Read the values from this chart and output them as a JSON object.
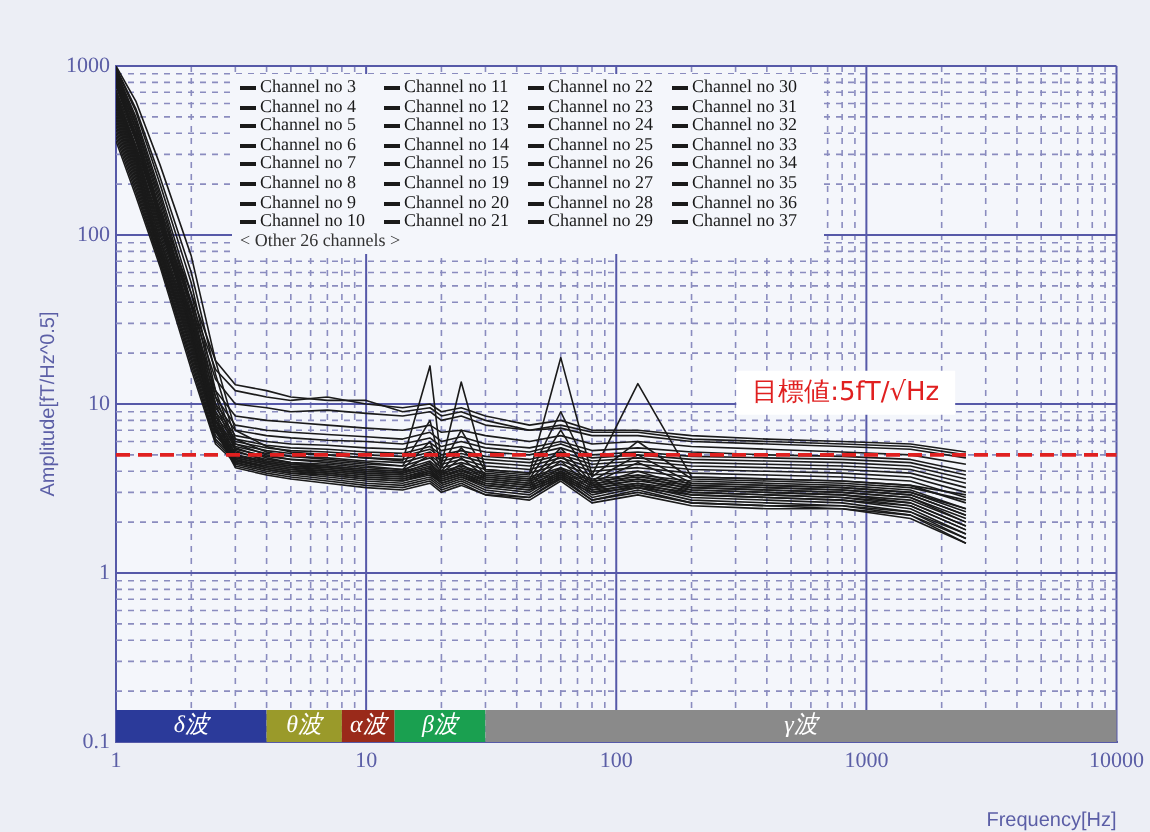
{
  "chart_data": {
    "type": "line",
    "xlabel": "Frequency[Hz]",
    "ylabel": "Amplitude[fT/Hz^0.5]",
    "log": "xy",
    "grid": true,
    "legend": "top",
    "marker": "none",
    "line_style": "solid",
    "xlim": [
      1,
      10000
    ],
    "ylim": [
      0.1,
      1000
    ],
    "xticks": [
      1,
      {
        "value": 2,
        "label": null
      },
      {
        "value": 3,
        "label": null
      },
      {
        "value": 4,
        "label": null
      },
      {
        "value": 5,
        "label": null
      },
      {
        "value": 6,
        "label": null
      },
      {
        "value": 7,
        "label": null
      },
      {
        "value": 8,
        "label": null
      },
      {
        "value": 9,
        "label": null
      },
      10,
      {
        "value": 20,
        "label": null
      },
      {
        "value": 30,
        "label": null
      },
      {
        "value": 40,
        "label": null
      },
      {
        "value": 50,
        "label": null
      },
      {
        "value": 60,
        "label": null
      },
      {
        "value": 70,
        "label": null
      },
      {
        "value": 80,
        "label": null
      },
      {
        "value": 90,
        "label": null
      },
      100,
      {
        "value": 200,
        "label": null
      },
      {
        "value": 300,
        "label": null
      },
      {
        "value": 400,
        "label": null
      },
      {
        "value": 500,
        "label": null
      },
      {
        "value": 600,
        "label": null
      },
      {
        "value": 700,
        "label": null
      },
      {
        "value": 800,
        "label": null
      },
      {
        "value": 900,
        "label": null
      },
      1000,
      {
        "value": 2000,
        "label": null
      },
      {
        "value": 3000,
        "label": null
      },
      {
        "value": 4000,
        "label": null
      },
      {
        "value": 5000,
        "label": null
      },
      {
        "value": 6000,
        "label": null
      },
      {
        "value": 7000,
        "label": null
      },
      {
        "value": 8000,
        "label": null
      },
      {
        "value": 9000,
        "label": null
      },
      10000
    ],
    "yticks": [
      0.1,
      {
        "value": 0.2,
        "label": null
      },
      {
        "value": 0.3,
        "label": null
      },
      {
        "value": 0.4,
        "label": null
      },
      {
        "value": 0.5,
        "label": null
      },
      {
        "value": 0.6,
        "label": null
      },
      {
        "value": 0.7,
        "label": null
      },
      {
        "value": 0.8,
        "label": null
      },
      {
        "value": 0.9,
        "label": null
      },
      1,
      {
        "value": 2,
        "label": null
      },
      {
        "value": 3,
        "label": null
      },
      {
        "value": 4,
        "label": null
      },
      {
        "value": 5,
        "label": null
      },
      {
        "value": 6,
        "label": null
      },
      {
        "value": 7,
        "label": null
      },
      {
        "value": 8,
        "label": null
      },
      {
        "value": 9,
        "label": null
      },
      10,
      {
        "value": 20,
        "label": null
      },
      {
        "value": 30,
        "label": null
      },
      {
        "value": 40,
        "label": null
      },
      {
        "value": 50,
        "label": null
      },
      {
        "value": 60,
        "label": null
      },
      {
        "value": 70,
        "label": null
      },
      {
        "value": 80,
        "label": null
      },
      {
        "value": 90,
        "label": null
      },
      100,
      {
        "value": 200,
        "label": null
      },
      {
        "value": 300,
        "label": null
      },
      {
        "value": 400,
        "label": null
      },
      {
        "value": 500,
        "label": null
      },
      {
        "value": 600,
        "label": null
      },
      {
        "value": 700,
        "label": null
      },
      {
        "value": 800,
        "label": null
      },
      {
        "value": 900,
        "label": null
      },
      1000
    ],
    "x": [
      1,
      1.2,
      1.5,
      2,
      2.5,
      3,
      4,
      5,
      7,
      10,
      14,
      18,
      20,
      24,
      30,
      45,
      60,
      80,
      122,
      200,
      400,
      800,
      1500,
      2500
    ],
    "ref_lines": [
      {
        "axis": "y",
        "value": 5,
        "label": "目標値:5fT/√Hz",
        "color": "#e02020",
        "line_style": "dashed"
      }
    ],
    "bands": [
      {
        "axis": "x",
        "from": 1,
        "to": 4,
        "label": "δ波",
        "color": "#2b3a9a"
      },
      {
        "axis": "x",
        "from": 4,
        "to": 8,
        "label": "θ波",
        "color": "#9a9a2a"
      },
      {
        "axis": "x",
        "from": 8,
        "to": 13,
        "label": "α波",
        "color": "#9a2a1a"
      },
      {
        "axis": "x",
        "from": 13,
        "to": 30,
        "label": "β波",
        "color": "#1aa050"
      },
      {
        "axis": "x",
        "from": 30,
        "to": 10000,
        "label": "γ波",
        "color": "#8a8a8a"
      }
    ],
    "annotations": [
      "< Other 26 channels >"
    ],
    "series": [
      {
        "name": "Channel no 3",
        "color": "#1a1a1a",
        "values": [
          1000,
          620,
          260,
          75,
          18,
          7,
          5.6,
          5.2,
          5,
          4.8,
          4.6,
          16.8,
          4.4,
          13.5,
          4.1,
          3.9,
          18.8,
          3.8,
          13.2,
          3.7,
          3.6,
          3.5,
          3.3,
          2.9
        ]
      },
      {
        "name": "Channel no 4",
        "color": "#1a1a1a",
        "values": [
          980,
          560,
          220,
          60,
          15,
          6.2,
          5.2,
          4.9,
          4.7,
          4.5,
          4.3,
          8,
          4.2,
          7,
          4,
          3.8,
          9,
          3.7,
          6,
          3.6,
          3.5,
          3.4,
          3.2,
          2.7
        ]
      },
      {
        "name": "Channel no 5",
        "color": "#1a1a1a",
        "values": [
          960,
          540,
          200,
          52,
          12,
          5.8,
          5,
          4.7,
          4.5,
          4.3,
          4.1,
          6,
          4,
          5.5,
          3.8,
          3.6,
          7,
          3.5,
          5,
          3.4,
          3.3,
          3.2,
          3,
          2.4
        ]
      },
      {
        "name": "Channel no 6",
        "color": "#1a1a1a",
        "values": [
          940,
          500,
          180,
          45,
          11,
          5.5,
          4.8,
          4.5,
          4.3,
          4.1,
          4,
          5,
          3.9,
          4.8,
          3.7,
          3.5,
          5.5,
          3.4,
          4.5,
          3.3,
          3.2,
          3.1,
          2.9,
          2.2
        ]
      },
      {
        "name": "Channel no 7",
        "color": "#1a1a1a",
        "values": [
          920,
          480,
          170,
          40,
          10,
          5.3,
          4.6,
          4.4,
          4.2,
          4,
          3.9,
          4.5,
          3.8,
          4.4,
          3.6,
          3.4,
          5,
          3.3,
          4,
          3.2,
          3.1,
          3,
          2.8,
          2
        ]
      },
      {
        "name": "Channel no 8",
        "color": "#1a1a1a",
        "values": [
          900,
          460,
          160,
          38,
          9,
          5,
          4.5,
          4.3,
          4.1,
          3.9,
          3.8,
          4.2,
          3.7,
          4.1,
          3.5,
          3.3,
          4.6,
          3.2,
          3.8,
          3.1,
          3,
          2.9,
          2.6,
          1.9
        ]
      },
      {
        "name": "Channel no 9",
        "color": "#1a1a1a",
        "values": [
          880,
          450,
          150,
          35,
          8.5,
          4.8,
          4.4,
          4.2,
          4,
          3.8,
          3.7,
          4,
          3.6,
          3.9,
          3.4,
          3.2,
          4.2,
          3.1,
          3.6,
          3,
          2.9,
          2.8,
          2.5,
          1.8
        ]
      },
      {
        "name": "Channel no 10",
        "color": "#1a1a1a",
        "values": [
          860,
          430,
          140,
          33,
          8,
          4.6,
          4.3,
          4.1,
          3.9,
          3.7,
          3.6,
          3.9,
          3.5,
          3.8,
          3.3,
          3.1,
          4,
          3,
          3.4,
          2.9,
          2.8,
          2.7,
          2.4,
          1.7
        ]
      },
      {
        "name": "Channel no 11",
        "color": "#1a1a1a",
        "values": [
          840,
          420,
          135,
          32,
          8,
          4.7,
          4.2,
          4,
          3.8,
          3.6,
          3.5,
          3.8,
          3.4,
          3.7,
          3.2,
          3,
          3.9,
          2.9,
          3.3,
          2.8,
          2.7,
          2.6,
          2.3,
          1.7
        ]
      },
      {
        "name": "Channel no 12",
        "color": "#1a1a1a",
        "values": [
          820,
          400,
          130,
          30,
          7.5,
          4.5,
          4.1,
          3.9,
          3.7,
          3.5,
          3.4,
          3.7,
          3.3,
          3.6,
          3.1,
          2.9,
          3.8,
          2.8,
          3.2,
          2.7,
          2.6,
          2.5,
          2.3,
          1.6
        ]
      },
      {
        "name": "Channel no 13",
        "color": "#1a1a1a",
        "values": [
          800,
          390,
          125,
          29,
          7.2,
          4.4,
          4,
          3.8,
          3.6,
          3.4,
          3.3,
          3.6,
          3.2,
          3.5,
          3,
          2.8,
          3.7,
          2.7,
          3.1,
          2.6,
          2.5,
          2.5,
          2.2,
          1.6
        ]
      },
      {
        "name": "Channel no 14",
        "color": "#1a1a1a",
        "values": [
          780,
          380,
          120,
          28,
          7,
          4.3,
          3.9,
          3.7,
          3.5,
          3.3,
          3.2,
          3.5,
          3.1,
          3.4,
          2.9,
          2.8,
          3.6,
          2.7,
          3,
          2.6,
          2.5,
          2.4,
          2.2,
          1.5
        ]
      },
      {
        "name": "Channel no 15",
        "color": "#1a1a1a",
        "values": [
          760,
          370,
          118,
          27,
          7,
          4.2,
          3.8,
          3.6,
          3.4,
          3.2,
          3.1,
          3.4,
          3,
          3.3,
          2.9,
          2.7,
          3.5,
          2.6,
          2.9,
          2.5,
          2.4,
          2.4,
          2.1,
          1.5
        ]
      },
      {
        "name": "Channel no 19",
        "color": "#1a1a1a",
        "values": [
          700,
          340,
          130,
          40,
          16,
          12,
          11,
          10.5,
          11,
          10,
          9.5,
          10,
          9,
          9.5,
          8.5,
          7.5,
          8,
          7,
          7,
          6.5,
          6.2,
          6,
          5.8,
          5.2
        ]
      },
      {
        "name": "Channel no 20",
        "color": "#1a1a1a",
        "values": [
          720,
          360,
          140,
          45,
          18,
          13,
          12,
          11,
          10.5,
          10.5,
          9,
          9.5,
          8.5,
          9,
          8,
          7,
          7.5,
          6.8,
          6.8,
          6.2,
          6,
          5.8,
          5.6,
          5
        ]
      },
      {
        "name": "Channel no 21",
        "color": "#1a1a1a",
        "values": [
          680,
          330,
          125,
          38,
          14,
          10,
          9.5,
          9,
          9.2,
          8.8,
          8.5,
          9,
          8,
          8.5,
          7.5,
          7,
          7.2,
          6.5,
          6.5,
          6,
          5.8,
          5.6,
          5.4,
          4.8
        ]
      },
      {
        "name": "Channel no 22",
        "color": "#1a1a1a",
        "values": [
          660,
          320,
          115,
          34,
          12,
          8.5,
          8,
          7.8,
          7.5,
          7.2,
          7,
          7.5,
          6.8,
          7,
          6.5,
          6,
          6.5,
          5.8,
          6,
          5.6,
          5.4,
          5.2,
          5,
          4.4
        ]
      },
      {
        "name": "Channel no 23",
        "color": "#1a1a1a",
        "values": [
          640,
          310,
          110,
          32,
          11,
          7.5,
          7,
          6.8,
          6.6,
          6.4,
          6.2,
          6.8,
          6,
          6.4,
          5.8,
          5.5,
          6,
          5.3,
          5.5,
          5.2,
          5,
          4.9,
          4.7,
          4
        ]
      },
      {
        "name": "Channel no 24",
        "color": "#1a1a1a",
        "values": [
          620,
          300,
          105,
          30,
          10,
          7,
          6.5,
          6.3,
          6.1,
          6,
          5.8,
          6.3,
          5.6,
          6,
          5.5,
          5.2,
          5.8,
          5,
          5.2,
          4.9,
          4.8,
          4.7,
          4.5,
          3.8
        ]
      },
      {
        "name": "Channel no 25",
        "color": "#1a1a1a",
        "values": [
          600,
          290,
          100,
          28,
          9.5,
          6.5,
          6,
          5.8,
          5.7,
          5.5,
          5.4,
          5.9,
          5.3,
          5.6,
          5.2,
          5,
          5.5,
          4.8,
          5,
          4.7,
          4.6,
          4.5,
          4.3,
          3.6
        ]
      },
      {
        "name": "Channel no 26",
        "color": "#1a1a1a",
        "values": [
          580,
          280,
          95,
          27,
          9,
          6.2,
          5.7,
          5.5,
          5.4,
          5.2,
          5.1,
          5.6,
          5,
          5.3,
          4.9,
          4.7,
          5.2,
          4.6,
          4.8,
          4.5,
          4.4,
          4.3,
          4.1,
          3.4
        ]
      },
      {
        "name": "Channel no 27",
        "color": "#1a1a1a",
        "values": [
          560,
          270,
          92,
          26,
          8.5,
          6,
          5.5,
          5.3,
          5.2,
          5,
          4.9,
          5.4,
          4.8,
          5.1,
          4.7,
          4.5,
          5,
          4.4,
          4.6,
          4.3,
          4.2,
          4.1,
          3.9,
          3.2
        ]
      },
      {
        "name": "Channel no 28",
        "color": "#1a1a1a",
        "values": [
          540,
          260,
          88,
          25,
          8,
          5.8,
          5.3,
          5.1,
          5,
          4.8,
          4.7,
          5.2,
          4.6,
          4.9,
          4.5,
          4.3,
          4.8,
          4.2,
          4.4,
          4.1,
          4,
          3.9,
          3.7,
          3
        ]
      },
      {
        "name": "Channel no 29",
        "color": "#1a1a1a",
        "values": [
          520,
          250,
          85,
          24,
          7.8,
          5.6,
          5.1,
          4.9,
          4.8,
          4.6,
          4.5,
          5,
          4.4,
          4.7,
          4.3,
          4.1,
          4.6,
          4,
          4.2,
          3.9,
          3.8,
          3.7,
          3.5,
          2.8
        ]
      },
      {
        "name": "Channel no 30",
        "color": "#1a1a1a",
        "values": [
          500,
          240,
          82,
          23,
          7.5,
          5.4,
          4.9,
          4.7,
          4.6,
          4.4,
          4.3,
          4.8,
          4.2,
          4.5,
          4.1,
          3.9,
          4.4,
          3.8,
          4,
          3.7,
          3.6,
          3.5,
          3.3,
          2.6
        ]
      },
      {
        "name": "Channel no 31",
        "color": "#1a1a1a",
        "values": [
          480,
          230,
          80,
          22,
          7.2,
          5.2,
          4.7,
          4.5,
          4.4,
          4.2,
          4.1,
          4.6,
          4,
          4.3,
          3.9,
          3.7,
          4.2,
          3.6,
          3.8,
          3.5,
          3.4,
          3.3,
          3.1,
          2.4
        ]
      },
      {
        "name": "Channel no 32",
        "color": "#1a1a1a",
        "values": [
          460,
          220,
          78,
          21,
          7,
          5,
          4.6,
          4.4,
          4.3,
          4.1,
          4,
          4.4,
          3.9,
          4.2,
          3.8,
          3.6,
          4.1,
          3.5,
          3.7,
          3.4,
          3.3,
          3.2,
          3,
          2.3
        ]
      },
      {
        "name": "Channel no 33",
        "color": "#1a1a1a",
        "values": [
          440,
          210,
          75,
          20,
          6.8,
          4.9,
          4.5,
          4.3,
          4.2,
          4,
          3.9,
          4.3,
          3.8,
          4.1,
          3.7,
          3.5,
          4,
          3.4,
          3.6,
          3.3,
          3.2,
          3.1,
          2.9,
          2.2
        ]
      },
      {
        "name": "Channel no 34",
        "color": "#1a1a1a",
        "values": [
          420,
          200,
          72,
          19,
          6.5,
          4.8,
          4.4,
          4.2,
          4.1,
          3.9,
          3.8,
          4.2,
          3.7,
          4,
          3.6,
          3.4,
          3.9,
          3.3,
          3.5,
          3.2,
          3.1,
          3,
          2.8,
          2.1
        ]
      },
      {
        "name": "Channel no 35",
        "color": "#1a1a1a",
        "values": [
          400,
          190,
          70,
          18,
          6.2,
          4.7,
          4.3,
          4.1,
          4,
          3.8,
          3.7,
          4.1,
          3.6,
          3.9,
          3.5,
          3.3,
          3.8,
          3.2,
          3.4,
          3.1,
          3,
          2.9,
          2.7,
          2
        ]
      },
      {
        "name": "Channel no 36",
        "color": "#1a1a1a",
        "values": [
          380,
          180,
          68,
          17,
          6,
          4.6,
          4.2,
          4,
          3.9,
          3.7,
          3.6,
          4,
          3.5,
          3.8,
          3.4,
          3.2,
          3.7,
          3.1,
          3.3,
          3,
          2.9,
          2.8,
          2.6,
          1.9
        ]
      },
      {
        "name": "Channel no 37",
        "color": "#1a1a1a",
        "values": [
          360,
          170,
          65,
          16,
          5.8,
          4.5,
          4.1,
          3.9,
          3.8,
          3.6,
          3.5,
          3.9,
          3.4,
          3.7,
          3.3,
          3.1,
          3.6,
          3,
          3.2,
          2.9,
          2.8,
          2.7,
          2.5,
          1.8
        ]
      }
    ]
  }
}
